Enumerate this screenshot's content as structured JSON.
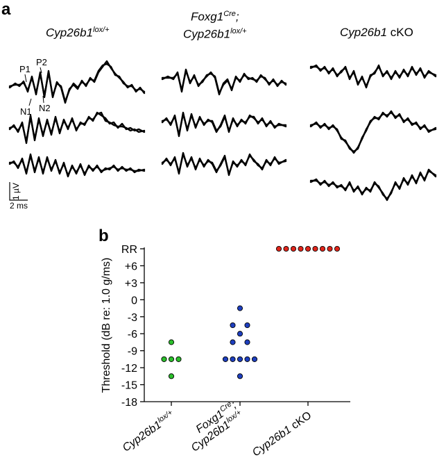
{
  "panel_a": {
    "letter": "a",
    "genotypes": [
      {
        "main": "Cyp26b1",
        "sup": "lox/+",
        "prefix": "",
        "prefix_sup": ""
      },
      {
        "main": "Cyp26b1",
        "sup": "lox/+",
        "prefix": "Foxg1",
        "prefix_sup": "Cre"
      },
      {
        "main": "Cyp26b1",
        "sup": "",
        "suffix": " cKO"
      }
    ],
    "peaks": [
      "P1",
      "P2",
      "N1",
      "N2"
    ],
    "scale_bar": {
      "amplitude": "1 µV",
      "time": "2 ms"
    }
  },
  "panel_b": {
    "letter": "b"
  },
  "chart_data": {
    "type": "scatter",
    "ylabel": "Threshold (dB re: 1.0 g/ms)",
    "yticks": [
      "RR",
      "+6",
      "+3",
      "0",
      "-3",
      "-6",
      "-9",
      "-12",
      "-15",
      "-18"
    ],
    "ytick_values": [
      9,
      6,
      3,
      0,
      -3,
      -6,
      -9,
      -12,
      -15,
      -18
    ],
    "ylim": [
      -18,
      9
    ],
    "categories": [
      "Cyp26b1 lox/+",
      "Foxg1 Cre; Cyp26b1 lox/+",
      "Cyp26b1 cKO"
    ],
    "series": [
      {
        "color": "#2bbf2b",
        "points": [
          [
            0,
            -7.5
          ],
          [
            -1,
            -10.5
          ],
          [
            0,
            -10.5
          ],
          [
            1,
            -10.5
          ],
          [
            0,
            -13.5
          ]
        ]
      },
      {
        "color": "#1e3fbf",
        "points": [
          [
            0,
            -1.5
          ],
          [
            -1,
            -4.5
          ],
          [
            1,
            -4.5
          ],
          [
            0,
            -6
          ],
          [
            -1,
            -7.5
          ],
          [
            1,
            -7.5
          ],
          [
            -2,
            -10.5
          ],
          [
            -1,
            -10.5
          ],
          [
            0,
            -10.5
          ],
          [
            1,
            -10.5
          ],
          [
            2,
            -10.5
          ],
          [
            0,
            -13.5
          ]
        ]
      },
      {
        "color": "#e0251b",
        "points": [
          [
            -4,
            9
          ],
          [
            -3,
            9
          ],
          [
            -2,
            9
          ],
          [
            -1,
            9
          ],
          [
            0,
            9
          ],
          [
            1,
            9
          ],
          [
            2,
            9
          ],
          [
            3,
            9
          ],
          [
            4,
            9
          ]
        ]
      }
    ]
  }
}
